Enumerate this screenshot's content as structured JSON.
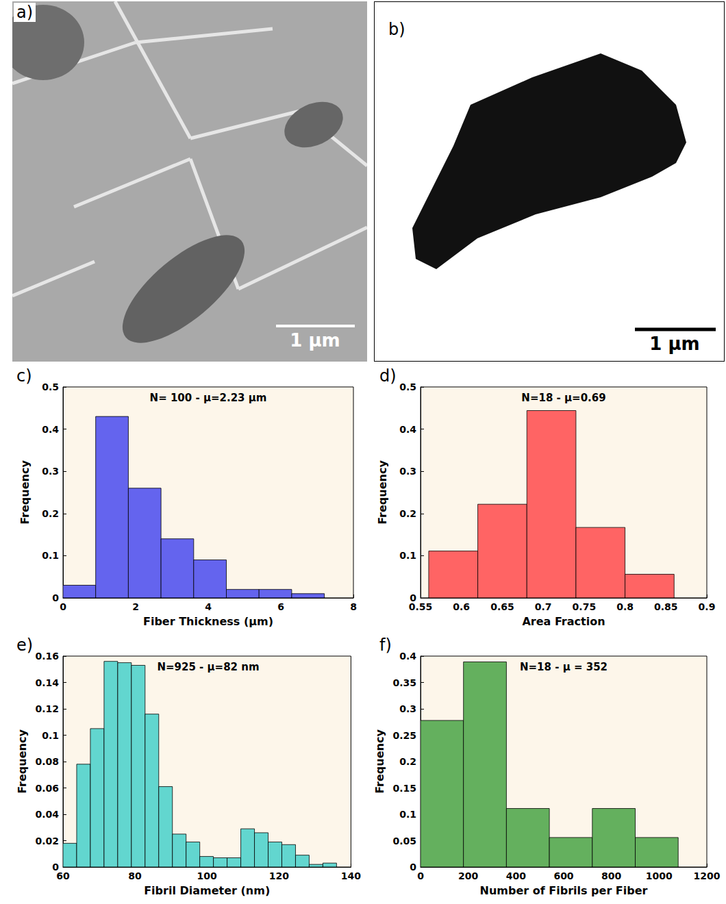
{
  "images": [
    {
      "panel": "a)",
      "scale_bar": "1 μm"
    },
    {
      "panel": "b)",
      "scale_bar": "1 μm"
    }
  ],
  "chart_data": [
    {
      "type": "histogram",
      "panel": "c)",
      "title": "N= 100 - μ=2.23 μm",
      "xlabel": "Fiber Thickness (μm)",
      "ylabel": "Frequency",
      "color": "#6464ee",
      "bins": [
        0,
        0.9,
        1.8,
        2.7,
        3.6,
        4.5,
        5.4,
        6.3,
        7.2
      ],
      "values": [
        0.03,
        0.43,
        0.26,
        0.14,
        0.09,
        0.02,
        0.02,
        0.01
      ],
      "xlim": [
        0,
        8
      ],
      "xticks": [
        0,
        2,
        4,
        6,
        8
      ],
      "ylim": [
        0,
        0.5
      ],
      "yticks": [
        0,
        0.1,
        0.2,
        0.3,
        0.4,
        0.5
      ]
    },
    {
      "type": "histogram",
      "panel": "d)",
      "title": "N=18 - μ=0.69",
      "xlabel": "Area Fraction",
      "ylabel": "Frequency",
      "color": "#ff6464",
      "bins": [
        0.56,
        0.62,
        0.68,
        0.74,
        0.8,
        0.86
      ],
      "values": [
        0.111,
        0.222,
        0.444,
        0.167,
        0.056
      ],
      "xlim": [
        0.55,
        0.9
      ],
      "xticks": [
        0.55,
        0.6,
        0.65,
        0.7,
        0.75,
        0.8,
        0.85,
        0.9
      ],
      "ylim": [
        0,
        0.5
      ],
      "yticks": [
        0,
        0.1,
        0.2,
        0.3,
        0.4,
        0.5
      ]
    },
    {
      "type": "histogram",
      "panel": "e)",
      "title": "N=925 - μ=82 nm",
      "xlabel": "Fibril Diameter (nm)",
      "ylabel": "Frequency",
      "color": "#62d6cf",
      "bins": [
        60,
        63.8,
        67.6,
        71.4,
        75.2,
        79,
        82.8,
        86.6,
        90.4,
        94.2,
        98,
        101.8,
        105.6,
        109.4,
        113.2,
        117,
        120.8,
        124.6,
        128.4,
        132.2,
        136
      ],
      "values": [
        0.018,
        0.078,
        0.105,
        0.156,
        0.155,
        0.153,
        0.116,
        0.061,
        0.025,
        0.019,
        0.008,
        0.007,
        0.007,
        0.029,
        0.026,
        0.019,
        0.017,
        0.009,
        0.002,
        0.003
      ],
      "xlim": [
        60,
        140
      ],
      "xticks": [
        60,
        80,
        100,
        120,
        140
      ],
      "ylim": [
        0,
        0.16
      ],
      "yticks": [
        0,
        0.02,
        0.04,
        0.06,
        0.08,
        0.1,
        0.12,
        0.14,
        0.16
      ]
    },
    {
      "type": "histogram",
      "panel": "f)",
      "title": "N=18 - μ = 352",
      "xlabel": "Number of Fibrils per Fiber",
      "ylabel": "Frequency",
      "color": "#64b05e",
      "bins": [
        0,
        180,
        360,
        540,
        720,
        900,
        1080
      ],
      "values": [
        0.278,
        0.389,
        0.111,
        0.056,
        0.111,
        0.056
      ],
      "xlim": [
        0,
        1200
      ],
      "xticks": [
        0,
        200,
        400,
        600,
        800,
        1000,
        1200
      ],
      "ylim": [
        0,
        0.4
      ],
      "yticks": [
        0,
        0.05,
        0.1,
        0.15,
        0.2,
        0.25,
        0.3,
        0.35,
        0.4
      ]
    }
  ]
}
